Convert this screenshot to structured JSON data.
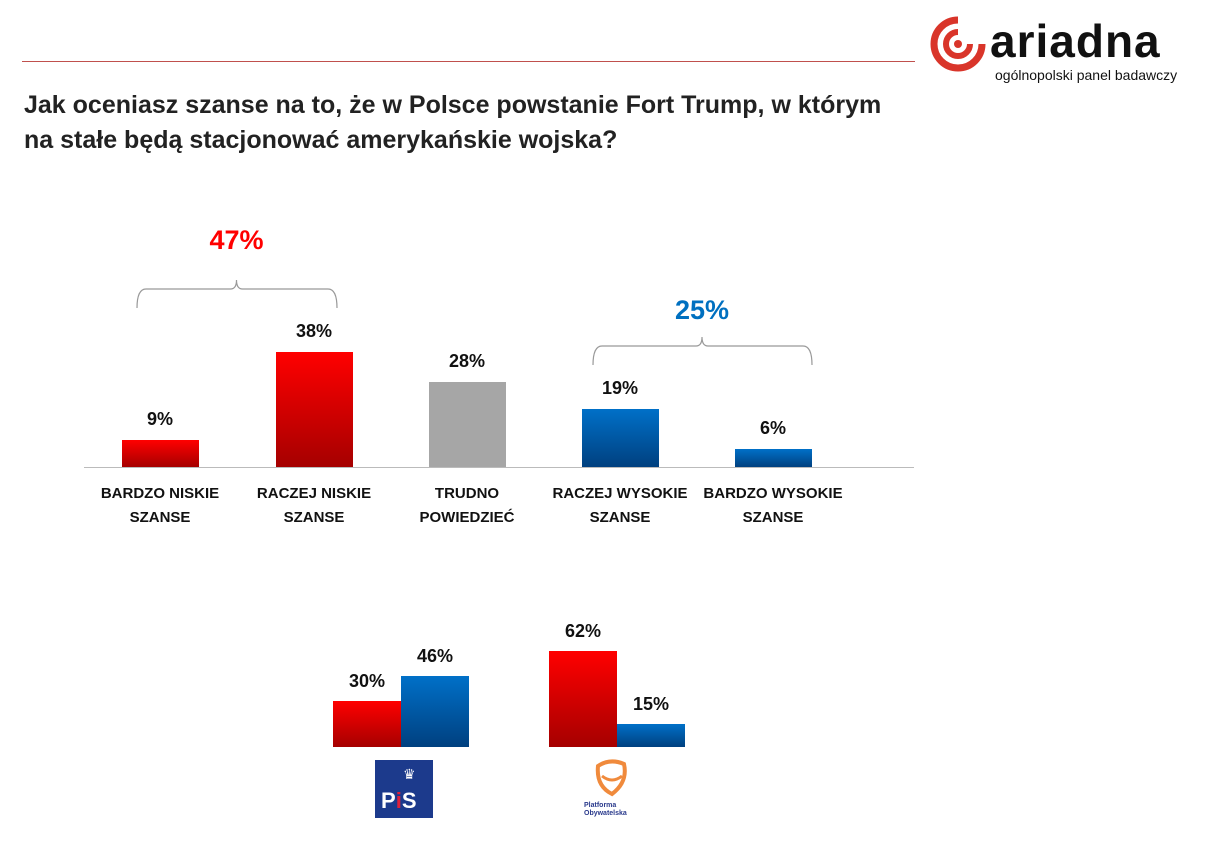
{
  "logo": {
    "name": "ariadna",
    "tagline": "ogólnopolski panel badawczy",
    "color": "#d9352a"
  },
  "title": "Jak oceniasz szanse na to, że w Polsce powstanie Fort Trump, w którym na stałe będą stacjonować amerykańskie wojska?",
  "chart_data": [
    {
      "type": "bar",
      "categories": [
        "BARDZO NISKIE SZANSE",
        "RACZEJ  NISKIE SZANSE",
        "TRUDNO POWIEDZIEĆ",
        "RACZEJ WYSOKIE SZANSE",
        "BARDZO WYSOKIE SZANSE"
      ],
      "values": [
        9,
        38,
        28,
        19,
        6
      ],
      "labels": [
        "9%",
        "38%",
        "28%",
        "19%",
        "6%"
      ],
      "colors": [
        "red",
        "red",
        "gray",
        "blue",
        "blue"
      ],
      "groups": [
        {
          "label": "47%",
          "color": "#ff0000",
          "from": 0,
          "to": 1
        },
        {
          "label": "25%",
          "color": "#0070c0",
          "from": 3,
          "to": 4
        }
      ]
    },
    {
      "type": "bar",
      "categories": [
        "PiS",
        "Platforma Obywatelska"
      ],
      "series": [
        {
          "color": "red",
          "values": [
            30,
            62
          ],
          "labels": [
            "30%",
            "62%"
          ]
        },
        {
          "color": "blue",
          "values": [
            46,
            15
          ],
          "labels": [
            "46%",
            "15%"
          ]
        }
      ]
    }
  ]
}
